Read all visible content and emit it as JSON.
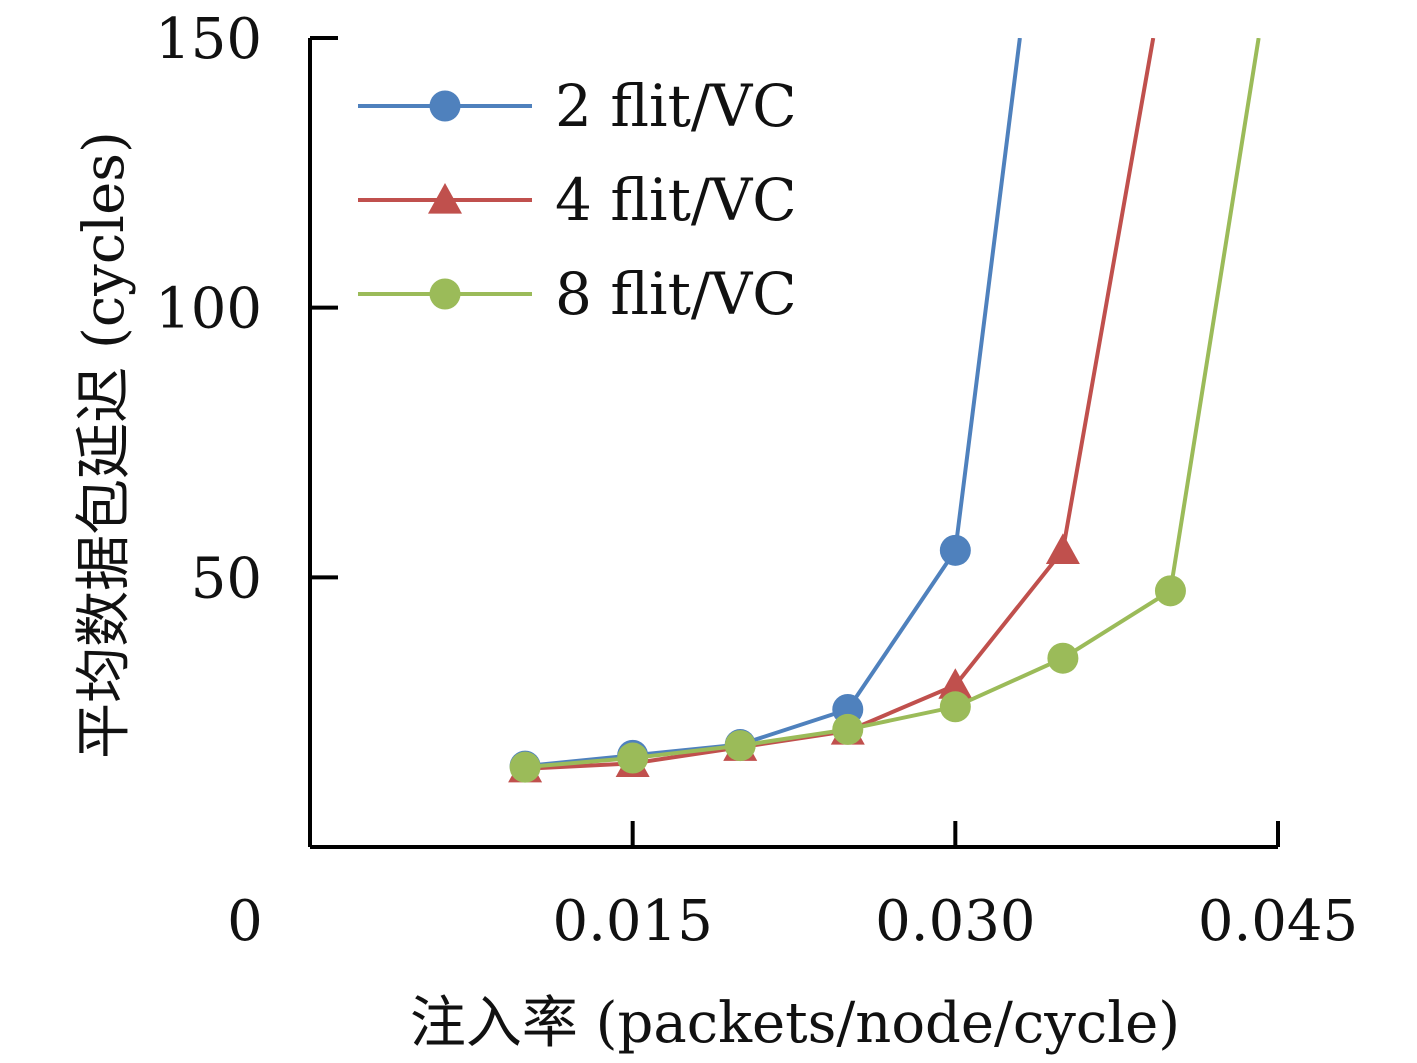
{
  "chart_data": {
    "type": "line",
    "xlabel": "注入率 (packets/node/cycle)",
    "ylabel": "平均数据包延迟 (cycles)",
    "xlim": [
      0,
      0.045
    ],
    "ylim": [
      0,
      150
    ],
    "x_ticks": [
      0.015,
      0.03,
      0.045
    ],
    "x_tick_labels": [
      "0.015",
      "0.030",
      "0.045"
    ],
    "y_ticks": [
      50,
      100,
      150
    ],
    "y_tick_labels": [
      "50",
      "100",
      "150"
    ],
    "origin_label": "0",
    "grid": false,
    "legend_position": "top-left",
    "series": [
      {
        "name": "2 flit/VC",
        "color": "#4f81bd",
        "marker": "circle",
        "x": [
          0.01,
          0.015,
          0.02,
          0.025,
          0.03,
          0.033
        ],
        "y": [
          15,
          17,
          19,
          25.5,
          55,
          150
        ]
      },
      {
        "name": "4 flit/VC",
        "color": "#c0504d",
        "marker": "triangle",
        "x": [
          0.01,
          0.015,
          0.02,
          0.025,
          0.03,
          0.035,
          0.0392
        ],
        "y": [
          14.5,
          15.5,
          18.5,
          21.5,
          30,
          55,
          150
        ]
      },
      {
        "name": "8 flit/VC",
        "color": "#9bbb59",
        "marker": "circle",
        "x": [
          0.01,
          0.015,
          0.02,
          0.025,
          0.03,
          0.035,
          0.04,
          0.0441
        ],
        "y": [
          14.8,
          16.5,
          18.8,
          21.8,
          26,
          35,
          47.5,
          150
        ]
      }
    ],
    "marker_counts": [
      5,
      6,
      7
    ]
  }
}
